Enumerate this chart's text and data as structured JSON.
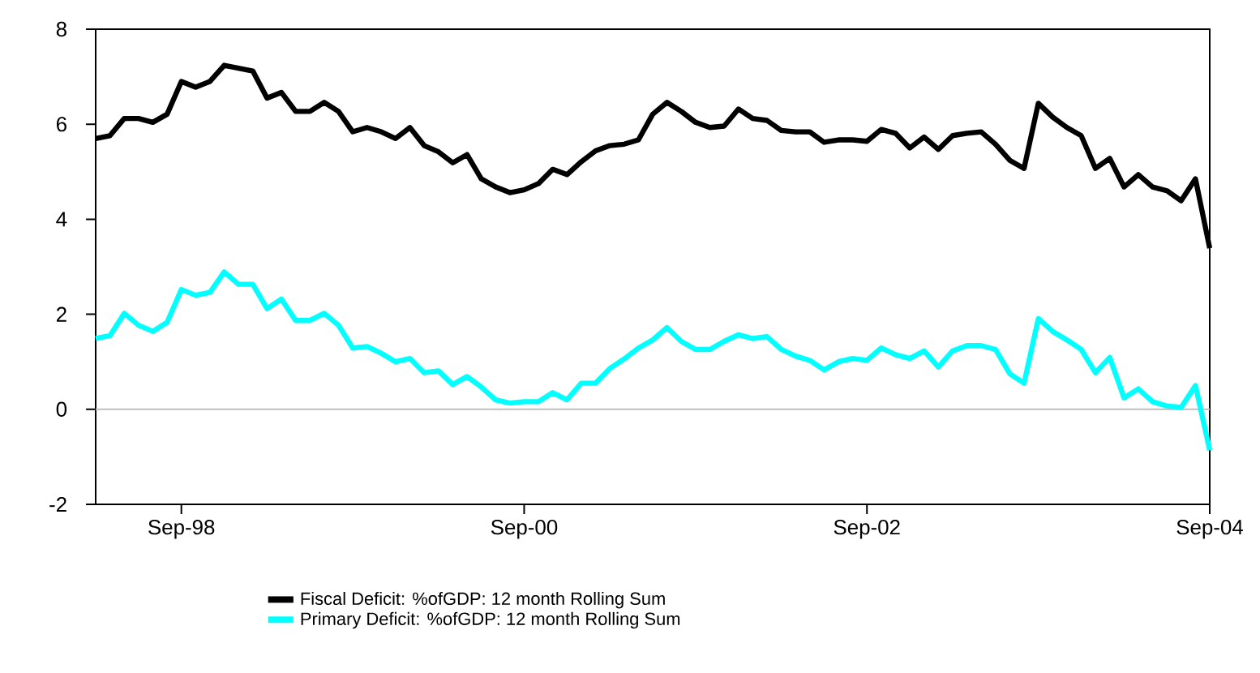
{
  "chart_data": {
    "type": "line",
    "x": [
      "1998-03",
      "1998-04",
      "1998-05",
      "1998-06",
      "1998-07",
      "1998-08",
      "1998-09",
      "1998-10",
      "1998-11",
      "1998-12",
      "1999-01",
      "1999-02",
      "1999-03",
      "1999-04",
      "1999-05",
      "1999-06",
      "1999-07",
      "1999-08",
      "1999-09",
      "1999-10",
      "1999-11",
      "1999-12",
      "2000-01",
      "2000-02",
      "2000-03",
      "2000-04",
      "2000-05",
      "2000-06",
      "2000-07",
      "2000-08",
      "2000-09",
      "2000-10",
      "2000-11",
      "2000-12",
      "2001-01",
      "2001-02",
      "2001-03",
      "2001-04",
      "2001-05",
      "2001-06",
      "2001-07",
      "2001-08",
      "2001-09",
      "2001-10",
      "2001-11",
      "2001-12",
      "2002-01",
      "2002-02",
      "2002-03",
      "2002-04",
      "2002-05",
      "2002-06",
      "2002-07",
      "2002-08",
      "2002-09",
      "2002-10",
      "2002-11",
      "2002-12",
      "2003-01",
      "2003-02",
      "2003-03",
      "2003-04",
      "2003-05",
      "2003-06",
      "2003-07",
      "2003-08",
      "2003-09",
      "2003-10",
      "2003-11",
      "2003-12",
      "2004-01",
      "2004-02",
      "2004-03",
      "2004-04",
      "2004-05",
      "2004-06",
      "2004-07",
      "2004-08",
      "2004-09"
    ],
    "series": [
      {
        "name": "Fiscal Deficit: %ofGDP: 12 month Rolling Sum",
        "color": "#000000",
        "values": [
          5.7,
          5.76,
          6.12,
          6.12,
          6.04,
          6.21,
          6.9,
          6.78,
          6.9,
          7.24,
          7.18,
          7.12,
          6.55,
          6.67,
          6.27,
          6.27,
          6.46,
          6.27,
          5.84,
          5.93,
          5.84,
          5.7,
          5.93,
          5.55,
          5.42,
          5.19,
          5.36,
          4.85,
          4.68,
          4.56,
          4.62,
          4.75,
          5.05,
          4.94,
          5.21,
          5.44,
          5.55,
          5.58,
          5.67,
          6.21,
          6.46,
          6.27,
          6.04,
          5.93,
          5.96,
          6.32,
          6.12,
          6.08,
          5.87,
          5.84,
          5.84,
          5.62,
          5.67,
          5.67,
          5.64,
          5.89,
          5.81,
          5.5,
          5.73,
          5.47,
          5.76,
          5.81,
          5.84,
          5.58,
          5.24,
          5.07,
          6.44,
          6.15,
          5.93,
          5.76,
          5.07,
          5.28,
          4.68,
          4.94,
          4.68,
          4.6,
          4.39,
          4.85,
          3.39
        ]
      },
      {
        "name": "Primary Deficit: %ofGDP: 12 month Rolling Sum",
        "color": "#00ffff",
        "values": [
          1.49,
          1.55,
          2.02,
          1.77,
          1.64,
          1.83,
          2.52,
          2.4,
          2.46,
          2.89,
          2.63,
          2.63,
          2.12,
          2.32,
          1.87,
          1.87,
          2.02,
          1.77,
          1.29,
          1.32,
          1.18,
          1.0,
          1.07,
          0.77,
          0.81,
          0.52,
          0.69,
          0.47,
          0.2,
          0.13,
          0.16,
          0.16,
          0.35,
          0.2,
          0.55,
          0.55,
          0.86,
          1.06,
          1.29,
          1.46,
          1.72,
          1.43,
          1.26,
          1.26,
          1.43,
          1.57,
          1.49,
          1.53,
          1.26,
          1.12,
          1.03,
          0.83,
          1.0,
          1.07,
          1.03,
          1.29,
          1.15,
          1.07,
          1.23,
          0.89,
          1.23,
          1.34,
          1.34,
          1.26,
          0.75,
          0.55,
          1.91,
          1.64,
          1.46,
          1.26,
          0.77,
          1.09,
          0.24,
          0.43,
          0.16,
          0.07,
          0.04,
          0.5,
          -0.86
        ]
      }
    ],
    "xlim": [
      "1998-03",
      "2004-09"
    ],
    "xticks": [
      {
        "value": "1998-09",
        "label": "Sep-98"
      },
      {
        "value": "2000-09",
        "label": "Sep-00"
      },
      {
        "value": "2002-09",
        "label": "Sep-02"
      },
      {
        "value": "2004-09",
        "label": "Sep-04"
      }
    ],
    "ylim": [
      -2,
      8
    ],
    "yticks": [
      -2,
      0,
      2,
      4,
      6,
      8
    ],
    "ref_lines": [
      {
        "axis": "y",
        "value": 0,
        "color": "#bfbfbf"
      }
    ],
    "legend": "bottom"
  }
}
